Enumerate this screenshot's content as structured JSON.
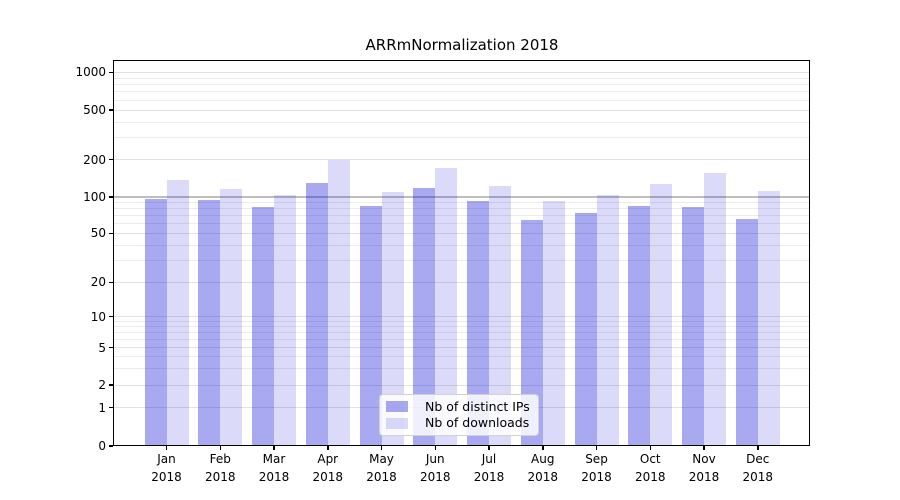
{
  "chart": {
    "title": "ARRmNormalization 2018"
  },
  "chart_data": {
    "type": "bar",
    "title": "ARRmNormalization 2018",
    "scale": "log above 1 with compressed linear 0-1 segment (symlog-like)",
    "grid": true,
    "legend_position": "lower center",
    "ylim": [
      0,
      1230
    ],
    "xlabel": "",
    "ylabel": "",
    "yticks": [
      0,
      1,
      2,
      5,
      10,
      20,
      50,
      100,
      200,
      500,
      1000
    ],
    "emphasized_gridline": 100,
    "minor_gridlines": [
      3,
      4,
      6,
      7,
      8,
      9,
      30,
      40,
      60,
      70,
      80,
      90,
      300,
      400,
      600,
      700,
      800,
      900
    ],
    "categories": [
      [
        "Jan",
        "2018"
      ],
      [
        "Feb",
        "2018"
      ],
      [
        "Mar",
        "2018"
      ],
      [
        "Apr",
        "2018"
      ],
      [
        "May",
        "2018"
      ],
      [
        "Jun",
        "2018"
      ],
      [
        "Jul",
        "2018"
      ],
      [
        "Aug",
        "2018"
      ],
      [
        "Sep",
        "2018"
      ],
      [
        "Oct",
        "2018"
      ],
      [
        "Nov",
        "2018"
      ],
      [
        "Dec",
        "2018"
      ]
    ],
    "series": [
      {
        "key": "distinct-ips",
        "name": "Nb of distinct IPs",
        "color": "rgba(10,10,215,0.35)",
        "blended_hex": "#a9a9f1",
        "values": [
          97,
          94,
          83,
          130,
          84,
          119,
          93,
          64,
          74,
          85,
          82,
          66
        ]
      },
      {
        "key": "downloads",
        "name": "Nb of downloads",
        "color": "rgba(10,10,215,0.145)",
        "blended_hex": "#dbdbf9",
        "values": [
          137,
          115,
          103,
          200,
          109,
          171,
          123,
          93,
          104,
          127,
          157,
          112
        ]
      }
    ]
  }
}
